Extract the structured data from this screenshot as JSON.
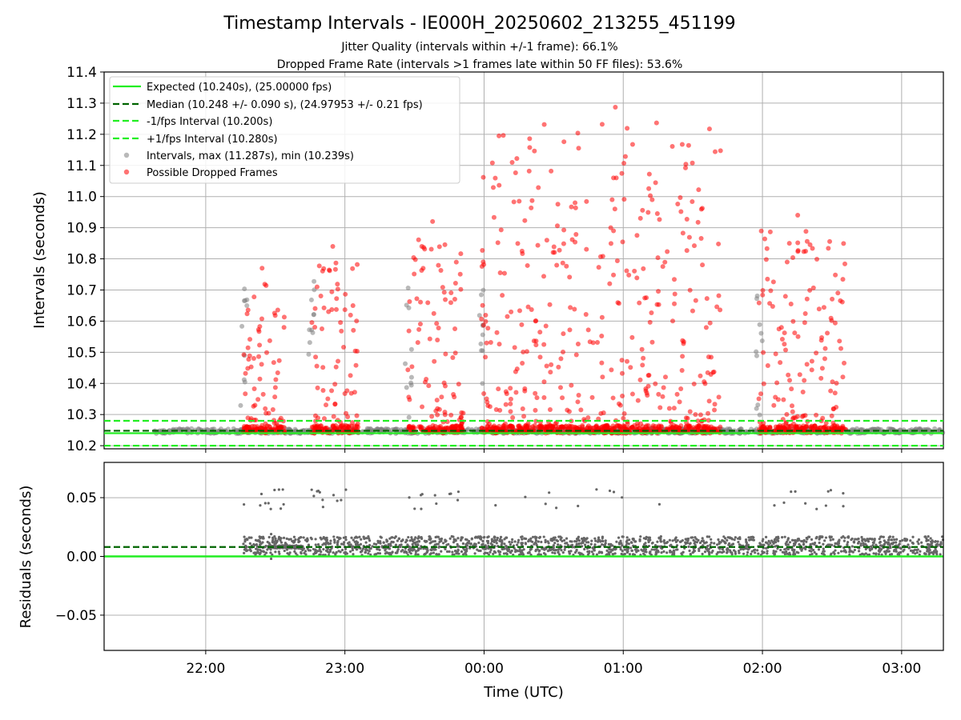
{
  "chart_data": {
    "type": "scatter",
    "title": "Timestamp Intervals - IE000H_20250602_213255_451199",
    "subtitle_1": "Jitter Quality (intervals within +/-1 frame): 66.1%",
    "subtitle_2": "Dropped Frame Rate (intervals >1 frames late within 50 FF files): 53.6%",
    "xlabel": "Time (UTC)",
    "x_ticks": [
      "22:00",
      "23:00",
      "00:00",
      "01:00",
      "02:00",
      "03:00"
    ],
    "x_tick_hours": [
      22,
      23,
      24,
      25,
      26,
      27
    ],
    "x_range_hours": [
      21.27,
      27.3
    ],
    "top_panel": {
      "ylabel": "Intervals (seconds)",
      "ylim": [
        10.19,
        11.4
      ],
      "y_ticks": [
        "10.2",
        "10.3",
        "10.4",
        "10.5",
        "10.6",
        "10.7",
        "10.8",
        "10.9",
        "11.0",
        "11.1",
        "11.2",
        "11.3",
        "11.4"
      ],
      "grid": true,
      "legend_position": "upper-left",
      "reference_lines": [
        {
          "name": "Expected (10.240s), (25.00000 fps)",
          "y": 10.24,
          "color": "#22ee22",
          "style": "solid"
        },
        {
          "name": "Median (10.248 +/- 0.090 s), (24.97953 +/- 0.21 fps)",
          "y": 10.248,
          "color": "#006400",
          "style": "dashed"
        },
        {
          "name": "-1/fps Interval (10.200s)",
          "y": 10.2,
          "color": "#22ee22",
          "style": "dashed"
        },
        {
          "name": "+1/fps Interval (10.280s)",
          "y": 10.28,
          "color": "#22ee22",
          "style": "dashed"
        }
      ],
      "series": [
        {
          "name": "Intervals, max (11.287s), min (10.239s)",
          "color": "#808080",
          "max": 11.287,
          "min": 10.239
        },
        {
          "name": "Possible Dropped Frames",
          "color": "#ff0000"
        }
      ],
      "clusters": [
        {
          "start_hours": 22.27,
          "end_hours": 22.57,
          "peak": 10.77
        },
        {
          "start_hours": 22.76,
          "end_hours": 23.1,
          "peak": 10.84
        },
        {
          "start_hours": 23.45,
          "end_hours": 23.85,
          "peak": 10.92
        },
        {
          "start_hours": 23.98,
          "end_hours": 25.7,
          "peak": 11.287
        },
        {
          "start_hours": 25.97,
          "end_hours": 26.6,
          "peak": 10.94
        }
      ]
    },
    "bottom_panel": {
      "ylabel": "Residuals (seconds)",
      "ylim": [
        -0.08,
        0.08
      ],
      "y_ticks": [
        "0.05",
        "0.00",
        "−0.05"
      ],
      "y_tick_values": [
        0.05,
        0.0,
        -0.05
      ],
      "grid": true,
      "expected_line": 0.0,
      "median_line": 0.008,
      "point_color": "#666666"
    }
  }
}
